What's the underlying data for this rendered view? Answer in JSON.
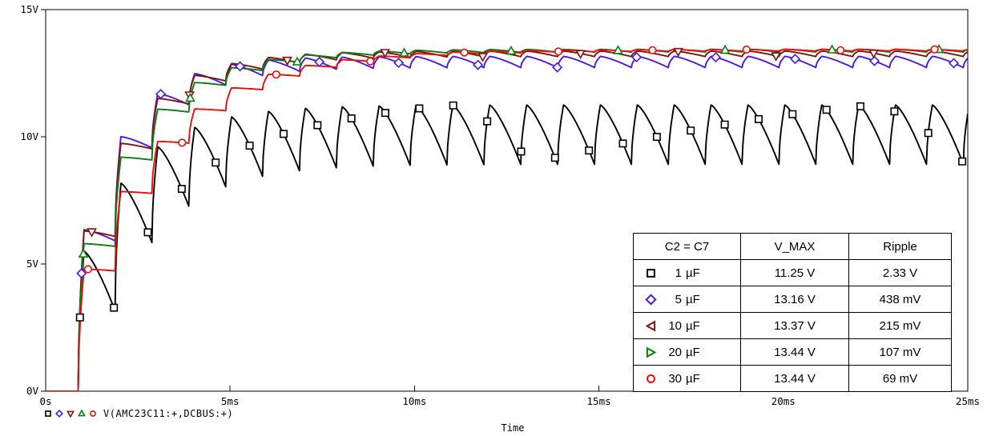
{
  "window": {
    "background": "#ffffff",
    "foreground": "#000000"
  },
  "legend": {
    "signal_label": "V(AMC23C11:+,DCBUS:+)"
  },
  "chart_data": {
    "type": "line",
    "title": "",
    "xlabel": "Time",
    "ylabel": "",
    "x_unit": "ms",
    "y_unit": "V",
    "x_range_ms": [
      0,
      25
    ],
    "y_range_v": [
      0,
      15
    ],
    "x_tick_labels": [
      "0s",
      "5ms",
      "10ms",
      "15ms",
      "20ms",
      "25ms"
    ],
    "y_tick_labels": [
      "0V",
      "5V",
      "10V",
      "15V"
    ],
    "grid": "off",
    "signal_label": "V(AMC23C11:+,DCBUS:+)",
    "waveform_model": {
      "description": "rectifier DC bus charging: pulse every period charges toward v_max with time-constant charge_tau_ms; between pulses voltage droops by ripple_v",
      "first_pulse_ms": 0.88,
      "period_ms": 1.0,
      "rise_ms": 0.16,
      "decay_shape_exp": 1.35,
      "rise_shape_exp": 0.55
    },
    "series": [
      {
        "name": "1 µF",
        "color": "#000000",
        "marker": "square",
        "table_marker": "square",
        "v_max": 11.25,
        "ripple_v": 2.33,
        "first_peak_v": 5.5,
        "charge_tau_ms": 1.6,
        "marker_start_ms": 0.93,
        "marker_every_ms": 0.92
      },
      {
        "name": "5 µF",
        "color": "#4a1ae0",
        "marker": "diamond",
        "table_marker": "diamond",
        "v_max": 13.16,
        "ripple_v": 0.438,
        "first_peak_v": 6.35,
        "charge_tau_ms": 1.3,
        "marker_start_ms": 0.97,
        "marker_every_ms": 2.15
      },
      {
        "name": "10 µF",
        "color": "#801313",
        "marker": "tri-down",
        "table_marker": "tri-left",
        "v_max": 13.37,
        "ripple_v": 0.215,
        "first_peak_v": 6.3,
        "charge_tau_ms": 1.5,
        "marker_start_ms": 1.25,
        "marker_every_ms": 2.65
      },
      {
        "name": "20 µF",
        "color": "#0e7c12",
        "marker": "tri-up",
        "table_marker": "tri-right",
        "v_max": 13.44,
        "ripple_v": 0.107,
        "first_peak_v": 5.8,
        "charge_tau_ms": 1.7,
        "marker_start_ms": 1.02,
        "marker_every_ms": 2.9
      },
      {
        "name": "30 µF",
        "color": "#ea0e0e",
        "marker": "circle",
        "table_marker": "circle",
        "v_max": 13.44,
        "ripple_v": 0.069,
        "first_peak_v": 4.8,
        "charge_tau_ms": 2.3,
        "marker_start_ms": 1.15,
        "marker_every_ms": 2.55
      }
    ]
  },
  "table": {
    "headers": [
      "C2 = C7",
      "V_MAX",
      "Ripple"
    ],
    "rows": [
      {
        "cap": "1 µF",
        "v_max": "11.25 V",
        "ripple": "2.33 V"
      },
      {
        "cap": "5 µF",
        "v_max": "13.16 V",
        "ripple": "438 mV"
      },
      {
        "cap": "10 µF",
        "v_max": "13.37 V",
        "ripple": "215 mV"
      },
      {
        "cap": "20 µF",
        "v_max": "13.44 V",
        "ripple": "107 mV"
      },
      {
        "cap": "30 µF",
        "v_max": "13.44 V",
        "ripple": "69 mV"
      }
    ]
  }
}
